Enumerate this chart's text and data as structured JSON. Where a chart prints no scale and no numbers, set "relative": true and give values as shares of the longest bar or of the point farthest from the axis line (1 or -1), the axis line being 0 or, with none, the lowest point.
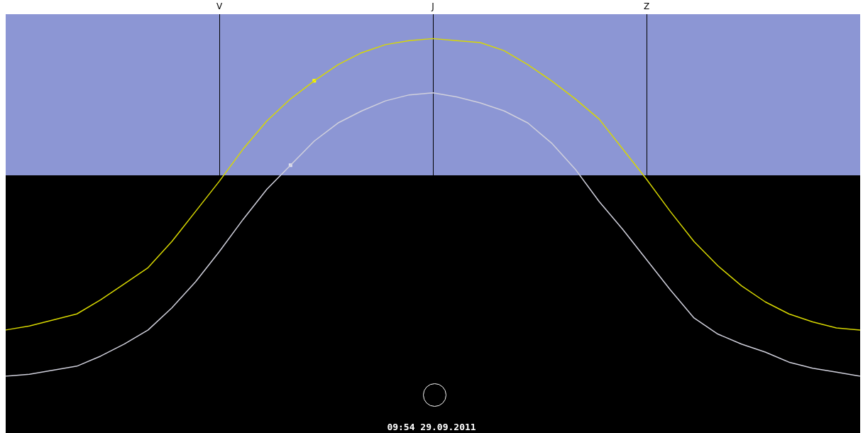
{
  "chart_data": {
    "type": "line",
    "relative": true,
    "tick_labels": "x",
    "grid": "x",
    "legend": false,
    "categories": [
      null,
      null,
      null,
      null,
      null,
      null,
      null,
      null,
      null,
      "V",
      null,
      null,
      null,
      null,
      null,
      null,
      null,
      null,
      "J",
      null,
      null,
      null,
      null,
      null,
      null,
      null,
      null,
      "Z",
      null,
      null,
      null,
      null,
      null,
      null,
      null,
      null,
      null
    ],
    "annotations": [
      "09:54 29.09.2011"
    ],
    "series": [
      {
        "color": "#d8d800",
        "values": [
          -0.77,
          -0.75,
          -0.72,
          -0.69,
          -0.62,
          -0.54,
          -0.46,
          -0.33,
          -0.18,
          -0.03,
          0.13,
          0.27,
          0.38,
          0.47,
          0.55,
          0.61,
          0.65,
          0.67,
          0.68,
          0.67,
          0.66,
          0.62,
          0.55,
          0.47,
          0.38,
          0.28,
          0.13,
          -0.02,
          -0.18,
          -0.33,
          -0.45,
          -0.55,
          -0.63,
          -0.69,
          -0.73,
          -0.76,
          -0.77
        ]
      },
      {
        "color": "#d0d0dc",
        "values": [
          -1,
          -0.99,
          -0.97,
          -0.95,
          -0.9,
          -0.84,
          -0.77,
          -0.66,
          -0.53,
          -0.38,
          -0.22,
          -0.07,
          0.05,
          0.17,
          0.26,
          0.32,
          0.37,
          0.4,
          0.41,
          0.39,
          0.36,
          0.32,
          0.26,
          0.16,
          0.03,
          -0.13,
          -0.27,
          -0.42,
          -0.57,
          -0.71,
          -0.79,
          -0.84,
          -0.88,
          -0.93,
          -0.96,
          -0.98,
          -1
        ]
      },
      {
        "type": "scatter",
        "marker": "square",
        "color": "#ffff00",
        "values": [
          null,
          null,
          null,
          null,
          null,
          null,
          null,
          null,
          null,
          null,
          null,
          null,
          null,
          0.47,
          null,
          null,
          null,
          null,
          null,
          null,
          null,
          null,
          null,
          null,
          null,
          null,
          null,
          null,
          null,
          null,
          null,
          null,
          null,
          null,
          null,
          null,
          null
        ]
      },
      {
        "type": "scatter",
        "marker": "square",
        "color": "#e0e0f0",
        "values": [
          null,
          null,
          null,
          null,
          null,
          null,
          null,
          null,
          null,
          null,
          null,
          null,
          0.05,
          null,
          null,
          null,
          null,
          null,
          null,
          null,
          null,
          null,
          null,
          null,
          null,
          null,
          null,
          null,
          null,
          null,
          null,
          null,
          null,
          null,
          null,
          null,
          null
        ]
      }
    ]
  }
}
